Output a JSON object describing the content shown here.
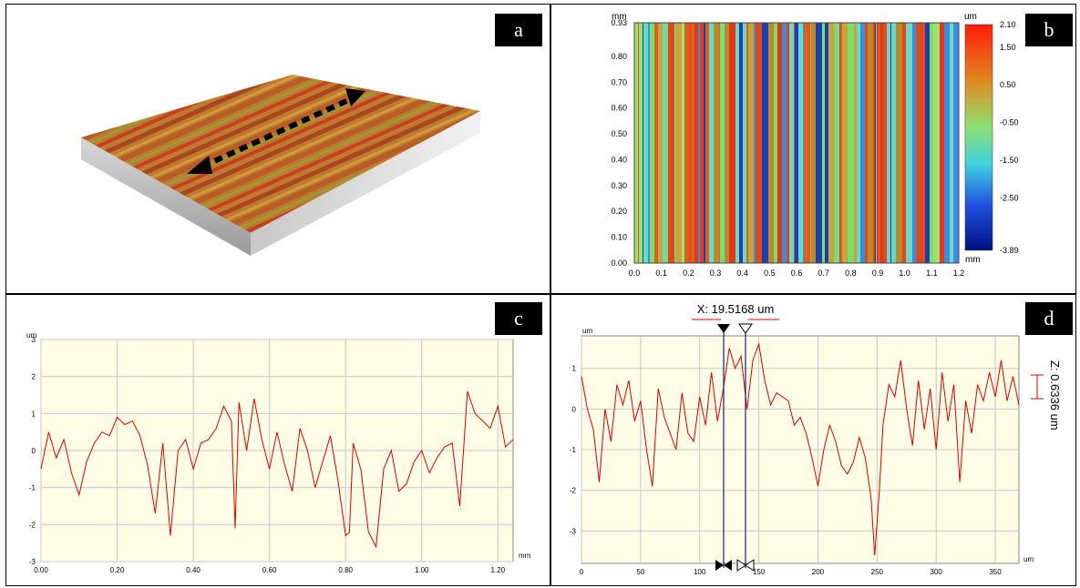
{
  "panels": {
    "a": {
      "label": "a"
    },
    "b": {
      "label": "b",
      "y_unit": "mm",
      "x_unit": "mm",
      "colorbar_unit": "um",
      "colorbar_ticks": [
        "2.10",
        "1.50",
        "0.50",
        "-0.50",
        "-1.50",
        "-2.50",
        "-3.89"
      ],
      "y_ticks": [
        "0.93",
        "0.80",
        "0.70",
        "0.60",
        "0.50",
        "0.40",
        "0.30",
        "0.20",
        "0.10",
        "0.00"
      ],
      "x_ticks": [
        "0.0",
        "0.1",
        "0.2",
        "0.3",
        "0.4",
        "0.5",
        "0.6",
        "0.7",
        "0.8",
        "0.9",
        "1.0",
        "1.1",
        "1.2"
      ]
    },
    "c": {
      "label": "c",
      "y_unit": "um",
      "x_unit": "mm",
      "y_ticks": [
        "3",
        "2",
        "1",
        "0",
        "-1",
        "-2",
        "-3"
      ],
      "x_ticks": [
        "0.00",
        "0.20",
        "0.40",
        "0.60",
        "0.80",
        "1.00",
        "1.20"
      ]
    },
    "d": {
      "label": "d",
      "y_unit": "um",
      "x_unit": "um",
      "y_ticks": [
        "1",
        "0",
        "-1",
        "-2",
        "-3"
      ],
      "x_ticks": [
        "0",
        "50",
        "100",
        "150",
        "200",
        "250",
        "300",
        "350"
      ],
      "x_measure": "X: 19.5168 um",
      "z_measure": "Z: 0.6336 um"
    }
  },
  "chart_data": [
    {
      "type": "line",
      "panel": "c",
      "xlabel": "mm",
      "ylabel": "um",
      "xlim": [
        0,
        1.24
      ],
      "ylim": [
        -3,
        3
      ],
      "grid": true,
      "series": [
        {
          "color": "#e00000",
          "x": [
            0.0,
            0.02,
            0.04,
            0.06,
            0.08,
            0.1,
            0.12,
            0.14,
            0.16,
            0.18,
            0.2,
            0.22,
            0.24,
            0.26,
            0.28,
            0.3,
            0.32,
            0.34,
            0.36,
            0.38,
            0.4,
            0.42,
            0.44,
            0.46,
            0.48,
            0.5,
            0.51,
            0.52,
            0.54,
            0.56,
            0.58,
            0.6,
            0.62,
            0.64,
            0.66,
            0.68,
            0.7,
            0.72,
            0.74,
            0.76,
            0.78,
            0.8,
            0.81,
            0.82,
            0.84,
            0.86,
            0.88,
            0.9,
            0.92,
            0.94,
            0.96,
            0.98,
            1.0,
            1.02,
            1.04,
            1.06,
            1.08,
            1.1,
            1.12,
            1.14,
            1.16,
            1.18,
            1.2,
            1.22,
            1.24
          ],
          "y": [
            -0.5,
            0.5,
            -0.2,
            0.3,
            -0.6,
            -1.2,
            -0.3,
            0.2,
            0.5,
            0.4,
            0.9,
            0.7,
            0.8,
            0.4,
            -0.4,
            -1.7,
            0.2,
            -2.3,
            0.0,
            0.3,
            -0.5,
            0.2,
            0.3,
            0.6,
            1.2,
            0.8,
            -2.1,
            1.3,
            0.0,
            1.4,
            0.3,
            -0.5,
            0.5,
            -0.4,
            -1.1,
            0.6,
            0.0,
            -1.0,
            -0.3,
            0.4,
            -0.8,
            -2.3,
            -2.2,
            0.2,
            -0.5,
            -2.2,
            -2.6,
            -0.5,
            0.0,
            -1.1,
            -0.9,
            -0.3,
            0.0,
            -0.6,
            -0.2,
            0.1,
            0.2,
            -1.5,
            1.6,
            1.0,
            0.8,
            0.6,
            1.2,
            0.1,
            0.3
          ]
        }
      ]
    },
    {
      "type": "line",
      "panel": "d",
      "xlabel": "um",
      "ylabel": "um",
      "xlim": [
        0,
        370
      ],
      "ylim": [
        -3.8,
        1.8
      ],
      "grid": true,
      "series": [
        {
          "color": "#e00000",
          "x": [
            0,
            5,
            10,
            15,
            20,
            25,
            30,
            35,
            40,
            45,
            50,
            55,
            60,
            65,
            70,
            75,
            80,
            85,
            90,
            95,
            100,
            105,
            110,
            115,
            120,
            125,
            130,
            135,
            140,
            145,
            150,
            155,
            160,
            165,
            170,
            175,
            180,
            185,
            190,
            195,
            200,
            205,
            210,
            215,
            220,
            225,
            230,
            235,
            240,
            245,
            248,
            252,
            255,
            260,
            265,
            270,
            275,
            280,
            285,
            290,
            295,
            300,
            305,
            310,
            315,
            320,
            325,
            330,
            335,
            340,
            345,
            350,
            355,
            360,
            365,
            370
          ],
          "y": [
            0.8,
            0.0,
            -0.5,
            -1.8,
            0.0,
            -0.8,
            0.6,
            0.1,
            0.7,
            -0.3,
            0.2,
            -1.0,
            -1.9,
            0.5,
            -0.2,
            -0.6,
            -1.0,
            0.4,
            -0.6,
            -0.8,
            0.3,
            -0.4,
            0.9,
            -0.3,
            0.5,
            1.5,
            1.0,
            1.3,
            0.0,
            1.2,
            1.6,
            0.7,
            0.1,
            0.4,
            0.3,
            0.2,
            -0.4,
            -0.2,
            -0.6,
            -1.2,
            -1.9,
            -1.0,
            -0.4,
            -0.8,
            -1.4,
            -1.6,
            -1.3,
            -0.7,
            -1.2,
            -2.2,
            -3.6,
            -2.0,
            -0.4,
            0.6,
            0.3,
            1.2,
            0.0,
            -0.9,
            0.7,
            -0.5,
            0.5,
            -1.0,
            0.9,
            -0.3,
            0.6,
            -1.8,
            0.2,
            -0.6,
            0.6,
            0.2,
            0.9,
            0.3,
            1.2,
            0.2,
            0.8,
            0.1
          ]
        }
      ]
    }
  ]
}
